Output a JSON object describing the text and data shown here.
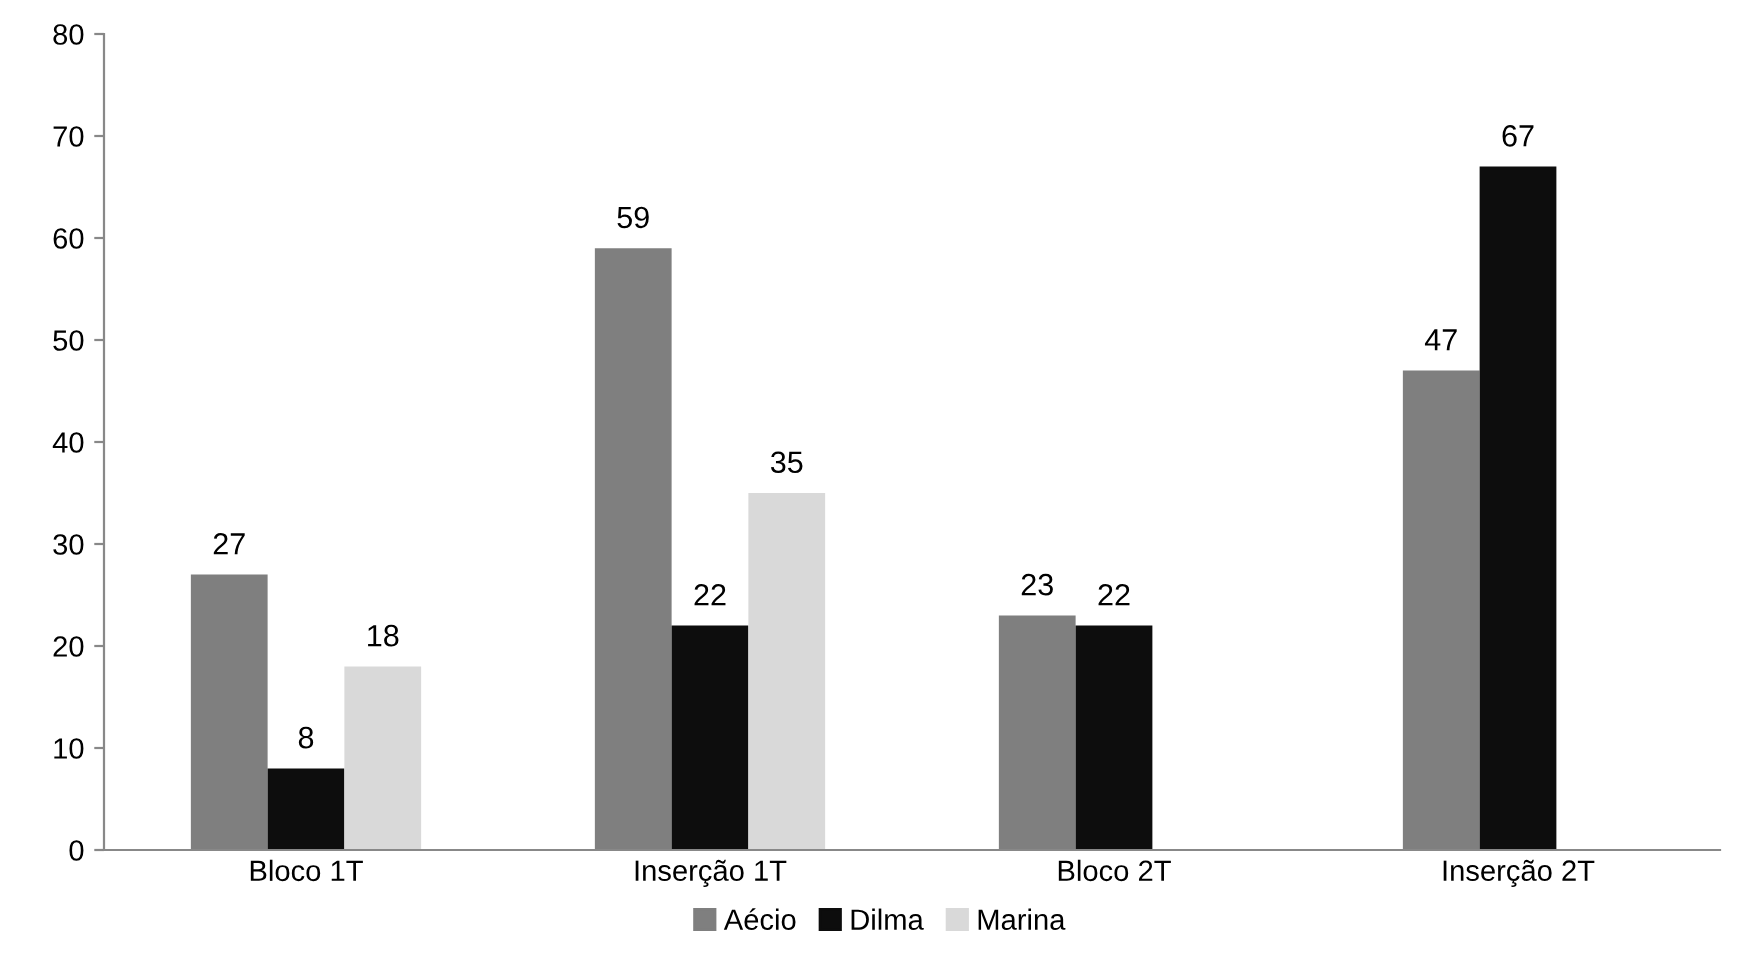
{
  "chart_data": {
    "type": "bar",
    "categories": [
      "Bloco 1T",
      "Inserção 1T",
      "Bloco 2T",
      "Inserção 2T"
    ],
    "series": [
      {
        "name": "Aécio",
        "color": "#7f7f7f",
        "values": [
          27,
          59,
          23,
          47
        ]
      },
      {
        "name": "Dilma",
        "color": "#0d0d0d",
        "values": [
          8,
          22,
          22,
          67
        ]
      },
      {
        "name": "Marina",
        "color": "#d9d9d9",
        "values": [
          18,
          35,
          null,
          null
        ]
      }
    ],
    "ylim": [
      0,
      80
    ],
    "yticks": [
      0,
      10,
      20,
      30,
      40,
      50,
      60,
      70,
      80
    ],
    "grid": false,
    "legend": "bottom",
    "data_labels": true
  }
}
